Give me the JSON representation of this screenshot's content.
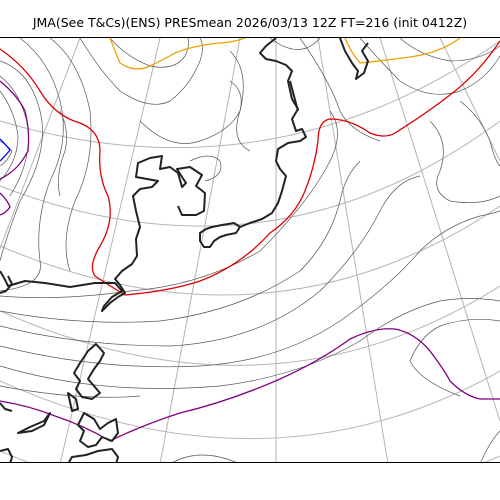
{
  "header": {
    "title": "JMA(See T&Cs)(ENS) PRESmean 2026/03/13 12Z FT=216 (init 0412Z)"
  },
  "map": {
    "variable": "PRESmean",
    "model": "JMA ENS",
    "valid_time": "2026/03/13 12Z",
    "forecast_hour": "FT=216",
    "init": "0412Z",
    "colors": {
      "coastline": "#222222",
      "graticule": "#b4b4b4",
      "isobar": "#555555",
      "contour_red": "#e00000",
      "contour_orange": "#f0a000",
      "contour_purple": "#800080",
      "contour_blue": "#0000ff"
    },
    "highlighted_contours": [
      "red-contour",
      "orange-contour",
      "purple-contour",
      "blue-contour"
    ]
  }
}
